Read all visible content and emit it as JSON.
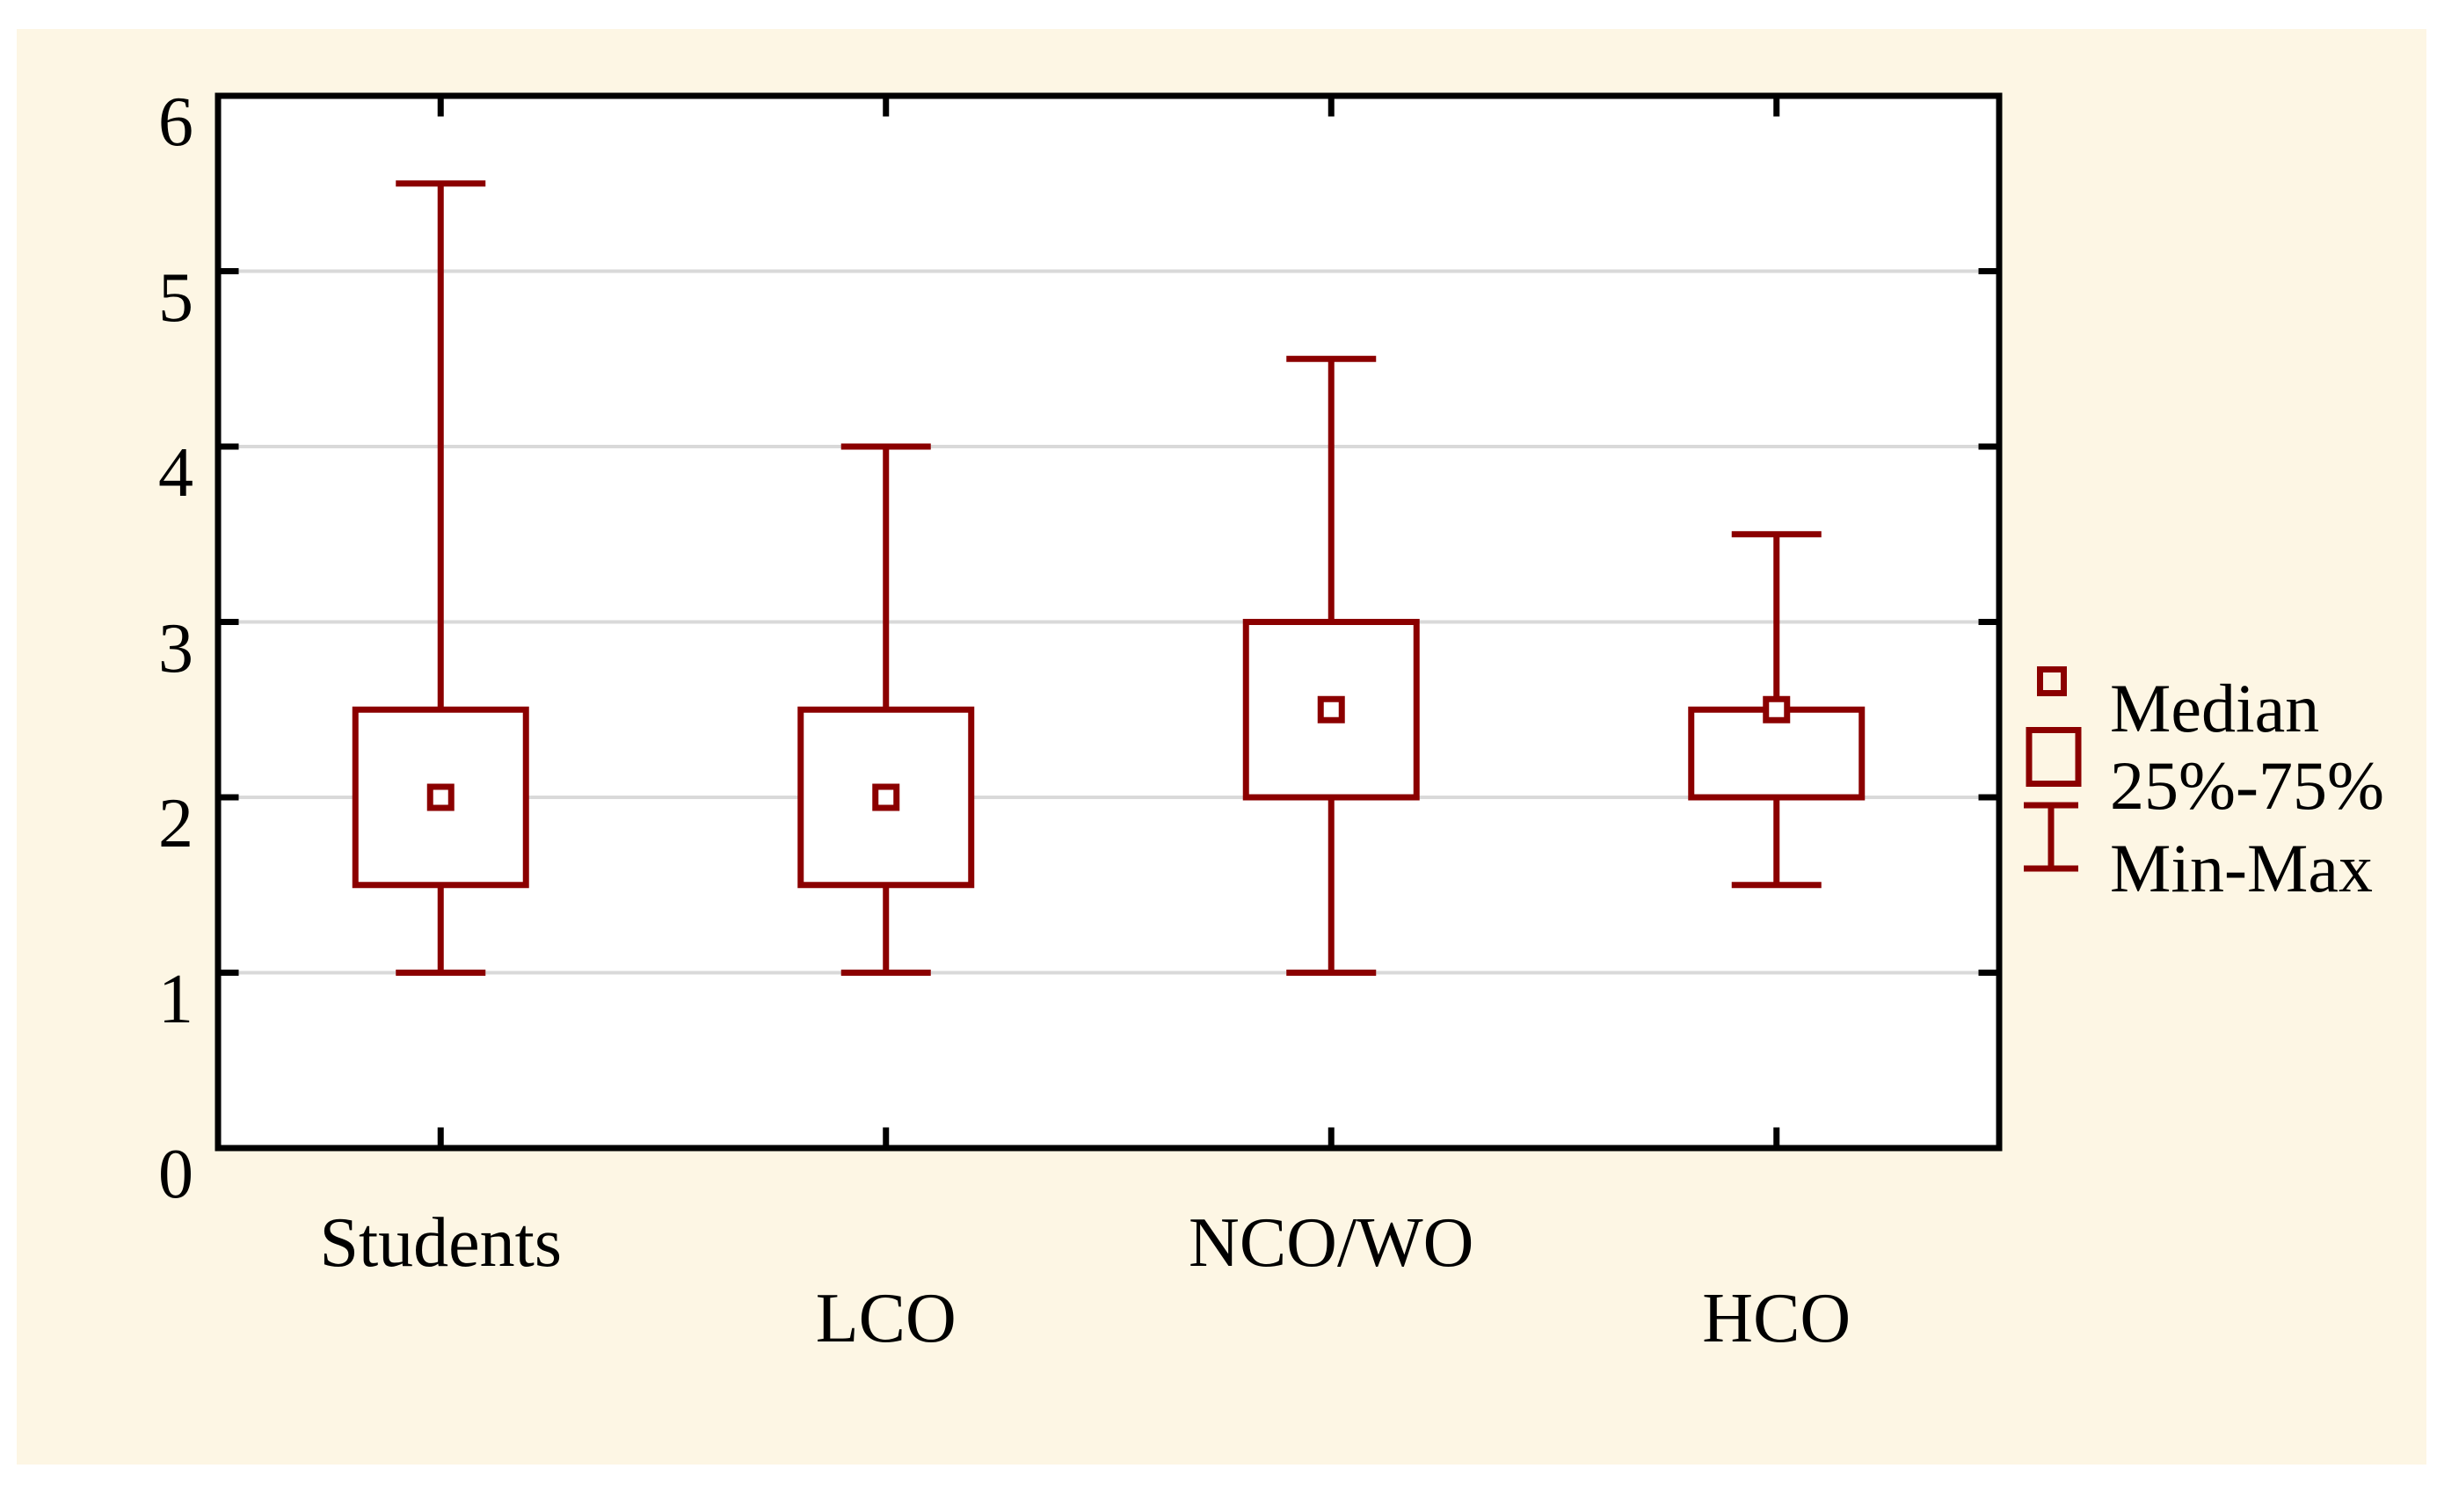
{
  "figure": {
    "page_background": "#ffffff",
    "figure_background": "#fdf6e4"
  },
  "chart_data": {
    "type": "boxplot",
    "categories": [
      "Students",
      "LCO",
      "NCO/WO",
      "HCO"
    ],
    "category_label_rows": [
      1,
      2,
      1,
      2
    ],
    "series": [
      {
        "name": "Students",
        "min": 1.0,
        "q1": 1.5,
        "median": 2.0,
        "q3": 2.5,
        "max": 5.5
      },
      {
        "name": "LCO",
        "min": 1.0,
        "q1": 1.5,
        "median": 2.0,
        "q3": 2.5,
        "max": 4.0
      },
      {
        "name": "NCO/WO",
        "min": 1.0,
        "q1": 2.0,
        "median": 2.5,
        "q3": 3.0,
        "max": 4.5
      },
      {
        "name": "HCO",
        "min": 1.5,
        "q1": 2.0,
        "median": 2.5,
        "q3": 2.5,
        "max": 3.5
      }
    ],
    "ylim": [
      0,
      6
    ],
    "yticks": [
      0,
      1,
      2,
      3,
      4,
      5,
      6
    ],
    "grid": "horizontal-gridlines-at-1-to-5",
    "legend": {
      "position": "right",
      "entries": [
        {
          "icon": "median-square-icon",
          "label": "Median"
        },
        {
          "icon": "box-icon",
          "label": "25%-75%"
        },
        {
          "icon": "min-max-whisker-icon",
          "label": "Min-Max"
        }
      ]
    },
    "colors": {
      "box_outline": "#8b0000",
      "box_fill": "#ffffff",
      "grid_line": "#d9d9d9",
      "axis": "#000000",
      "text": "#000000",
      "plot_background": "#ffffff"
    }
  }
}
